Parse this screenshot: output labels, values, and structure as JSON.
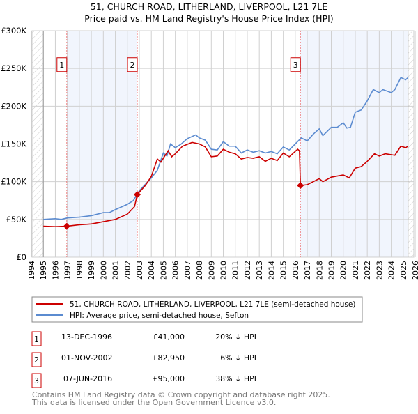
{
  "title": "51, CHURCH ROAD, LITHERLAND, LIVERPOOL, L21 7LE",
  "subtitle": "Price paid vs. HM Land Registry's House Price Index (HPI)",
  "chart_data": {
    "type": "line",
    "title": "51, CHURCH ROAD, LITHERLAND, LIVERPOOL, L21 7LE",
    "subtitle": "Price paid vs. HM Land Registry's House Price Index (HPI)",
    "xlim": [
      1994,
      2026
    ],
    "ylim": [
      0,
      300000
    ],
    "x_ticks": [
      "1994",
      "1995",
      "1996",
      "1997",
      "1998",
      "1999",
      "2000",
      "2001",
      "2002",
      "2003",
      "2004",
      "2005",
      "2006",
      "2007",
      "2008",
      "2009",
      "2010",
      "2011",
      "2012",
      "2013",
      "2014",
      "2015",
      "2016",
      "2017",
      "2018",
      "2019",
      "2020",
      "2021",
      "2022",
      "2023",
      "2024",
      "2025",
      "2026"
    ],
    "y_ticks": [
      {
        "v": 0,
        "label": "£0"
      },
      {
        "v": 50000,
        "label": "£50K"
      },
      {
        "v": 100000,
        "label": "£100K"
      },
      {
        "v": 150000,
        "label": "£150K"
      },
      {
        "v": 200000,
        "label": "£200K"
      },
      {
        "v": 250000,
        "label": "£250K"
      },
      {
        "v": 300000,
        "label": "£300K"
      }
    ],
    "grid": true,
    "data_end": 2025.4,
    "series": [
      {
        "name": "51, CHURCH ROAD, LITHERLAND, LIVERPOOL, L21 7LE (semi-detached house)",
        "color": "#cc0000",
        "x": [
          1995,
          1996,
          1996.95,
          1998,
          1999,
          2000,
          2001,
          2002,
          2002.6,
          2002.83,
          2003.5,
          2004,
          2004.5,
          2004.8,
          2005.4,
          2005.7,
          2006,
          2006.6,
          2007.4,
          2008,
          2008.5,
          2009,
          2009.5,
          2010,
          2010.5,
          2011,
          2011.5,
          2012,
          2012.5,
          2013,
          2013.5,
          2014,
          2014.5,
          2015,
          2015.5,
          2016.2,
          2016.35,
          2016.43,
          2017,
          2018,
          2018.3,
          2019,
          2020,
          2020.5,
          2021,
          2021.5,
          2022,
          2022.6,
          2023,
          2023.5,
          2024.3,
          2024.8,
          2025.2,
          2025.4
        ],
        "values": [
          41000,
          40500,
          41000,
          43000,
          44000,
          47000,
          50000,
          57000,
          67000,
          82950,
          95000,
          107000,
          130000,
          126000,
          141000,
          133000,
          137000,
          147000,
          152000,
          150000,
          146000,
          133000,
          134000,
          143000,
          139000,
          137000,
          130000,
          132000,
          131000,
          133000,
          127000,
          131000,
          128000,
          138000,
          133000,
          143000,
          141000,
          95000,
          96000,
          104000,
          100000,
          106000,
          109000,
          105000,
          118000,
          120000,
          127000,
          137000,
          134000,
          137000,
          135000,
          147000,
          145000,
          147000
        ]
      },
      {
        "name": "HPI: Average price, semi-detached house, Sefton",
        "color": "#5b8bd0",
        "x": [
          1995,
          1996,
          1996.5,
          1997,
          1998,
          1999,
          2000,
          2000.5,
          2001,
          2002,
          2002.5,
          2003,
          2004,
          2004.5,
          2005,
          2005.3,
          2005.6,
          2006,
          2006.5,
          2007,
          2007.7,
          2008,
          2008.5,
          2009,
          2009.5,
          2010,
          2010.5,
          2011,
          2011.5,
          2012,
          2012.5,
          2013,
          2013.5,
          2014,
          2014.5,
          2015,
          2015.5,
          2016,
          2016.5,
          2017,
          2017.5,
          2018,
          2018.3,
          2019,
          2019.5,
          2020,
          2020.3,
          2020.6,
          2021,
          2021.5,
          2022,
          2022.5,
          2023,
          2023.3,
          2024,
          2024.3,
          2024.8,
          2025.2,
          2025.4
        ],
        "values": [
          50000,
          51000,
          50000,
          52000,
          53000,
          55000,
          59000,
          59000,
          63000,
          70000,
          75000,
          88000,
          105000,
          115000,
          138000,
          134000,
          150000,
          145000,
          150000,
          157000,
          162000,
          158000,
          155000,
          143000,
          142000,
          153000,
          147000,
          147000,
          138000,
          142000,
          139000,
          141000,
          138000,
          140000,
          137000,
          146000,
          142000,
          150000,
          158000,
          154000,
          163000,
          170000,
          161000,
          172000,
          172000,
          178000,
          171000,
          172000,
          192000,
          195000,
          207000,
          222000,
          218000,
          222000,
          218000,
          222000,
          238000,
          235000,
          238000
        ]
      }
    ],
    "sales": [
      {
        "id": "1",
        "x": 1996.95,
        "value": 41000
      },
      {
        "id": "2",
        "x": 2002.83,
        "value": 82950
      },
      {
        "id": "3",
        "x": 2016.43,
        "value": 95000
      }
    ]
  },
  "legend": [
    {
      "label": "51, CHURCH ROAD, LITHERLAND, LIVERPOOL, L21 7LE (semi-detached house)",
      "color": "#cc0000"
    },
    {
      "label": "HPI: Average price, semi-detached house, Sefton",
      "color": "#5b8bd0"
    }
  ],
  "transactions": [
    {
      "id": "1",
      "date": "13-DEC-1996",
      "price": "£41,000",
      "hpi": "20% ↓ HPI"
    },
    {
      "id": "2",
      "date": "01-NOV-2002",
      "price": "£82,950",
      "hpi": "6% ↓ HPI"
    },
    {
      "id": "3",
      "date": "07-JUN-2016",
      "price": "£95,000",
      "hpi": "38% ↓ HPI"
    }
  ],
  "footer": [
    "Contains HM Land Registry data © Crown copyright and database right 2025.",
    "This data is licensed under the Open Government Licence v3.0."
  ]
}
